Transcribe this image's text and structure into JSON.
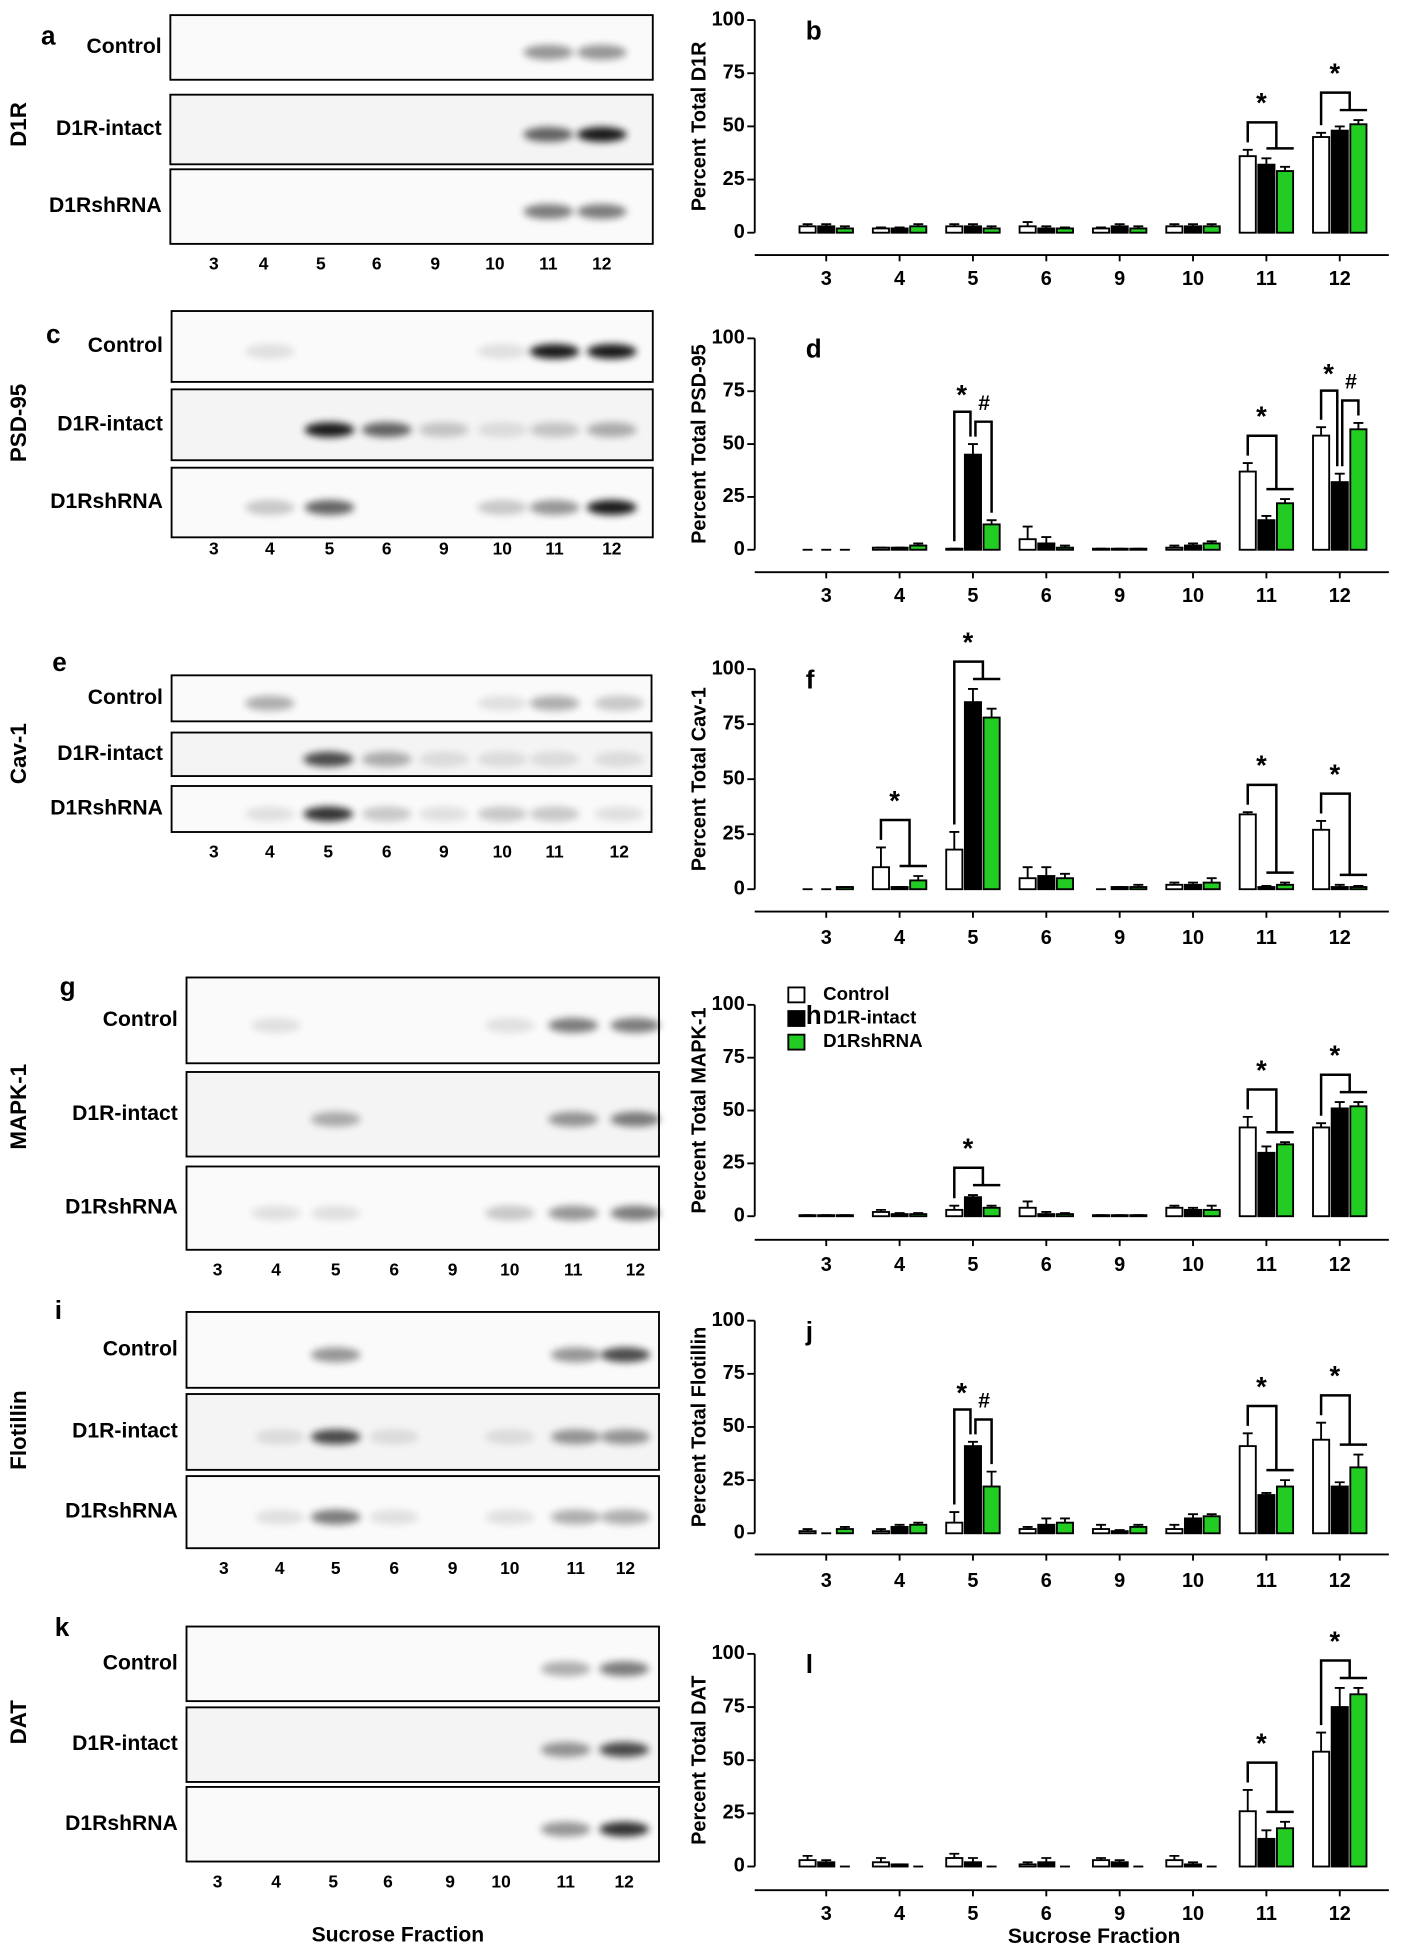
{
  "blots": {
    "xlabel": "Sucrose Fraction",
    "groups": [
      {
        "letter": "a",
        "protein": "D1R",
        "rows": [
          "Control",
          "D1R-intact",
          "D1RshRNA"
        ],
        "lanes": [
          "3",
          "4",
          "5",
          "6",
          "9",
          "10",
          "11",
          "12"
        ]
      },
      {
        "letter": "c",
        "protein": "PSD-95",
        "rows": [
          "Control",
          "D1R-intact",
          "D1RshRNA"
        ],
        "lanes": [
          "3",
          "4",
          "5",
          "6",
          "9",
          "10",
          "11",
          "12"
        ]
      },
      {
        "letter": "e",
        "protein": "Cav-1",
        "rows": [
          "Control",
          "D1R-intact",
          "D1RshRNA"
        ],
        "lanes": [
          "3",
          "4",
          "5",
          "6",
          "9",
          "10",
          "11",
          "12"
        ]
      },
      {
        "letter": "g",
        "protein": "MAPK-1",
        "rows": [
          "Control",
          "D1R-intact",
          "D1RshRNA"
        ],
        "lanes": [
          "3",
          "4",
          "5",
          "6",
          "9",
          "10",
          "11",
          "12"
        ]
      },
      {
        "letter": "i",
        "protein": "Flotillin",
        "rows": [
          "Control",
          "D1R-intact",
          "D1RshRNA"
        ],
        "lanes": [
          "3",
          "4",
          "5",
          "6",
          "9",
          "10",
          "11",
          "12"
        ]
      },
      {
        "letter": "k",
        "protein": "DAT",
        "rows": [
          "Control",
          "D1R-intact",
          "D1RshRNA"
        ],
        "lanes": [
          "3",
          "4",
          "5",
          "6",
          "9",
          "10",
          "11",
          "12"
        ]
      }
    ]
  },
  "chart_data": [
    {
      "type": "bar",
      "panel": "b",
      "ylabel": "Percent Total D1R",
      "categories": [
        "3",
        "4",
        "5",
        "6",
        "9",
        "10",
        "11",
        "12"
      ],
      "ylim": [
        0,
        100
      ],
      "yticks": [
        0,
        25,
        50,
        75,
        100
      ],
      "series": [
        {
          "name": "Control",
          "color": "#ffffff",
          "values": [
            3,
            2,
            3,
            3,
            2,
            3,
            36,
            45
          ],
          "errors": [
            1,
            0.5,
            1,
            2,
            0.5,
            1,
            3,
            2
          ]
        },
        {
          "name": "D1R-intact",
          "color": "#000000",
          "values": [
            3,
            2,
            3,
            2,
            3,
            3,
            32,
            48
          ],
          "errors": [
            1,
            0.5,
            1,
            1,
            1,
            1,
            3,
            2
          ]
        },
        {
          "name": "D1RshRNA",
          "color": "#22cc22",
          "values": [
            2,
            3,
            2,
            2,
            2,
            3,
            29,
            51
          ],
          "errors": [
            1,
            1,
            1,
            0.5,
            1,
            1,
            2,
            2
          ]
        }
      ],
      "annotations": [
        {
          "text": "*",
          "category": "11"
        },
        {
          "text": "*",
          "category": "12"
        }
      ]
    },
    {
      "type": "bar",
      "panel": "d",
      "ylabel": "Percent Total PSD-95",
      "categories": [
        "3",
        "4",
        "5",
        "6",
        "9",
        "10",
        "11",
        "12"
      ],
      "ylim": [
        0,
        100
      ],
      "yticks": [
        0,
        25,
        50,
        75,
        100
      ],
      "series": [
        {
          "name": "Control",
          "color": "#ffffff",
          "values": [
            0,
            1,
            0.5,
            5,
            0.5,
            1,
            37,
            54
          ],
          "errors": [
            0,
            0,
            0,
            6,
            0,
            1,
            4,
            4
          ]
        },
        {
          "name": "D1R-intact",
          "color": "#000000",
          "values": [
            0,
            1,
            45,
            3,
            0.5,
            2,
            14,
            32
          ],
          "errors": [
            0,
            0,
            5,
            3,
            0,
            1,
            2,
            4
          ]
        },
        {
          "name": "D1RshRNA",
          "color": "#22cc22",
          "values": [
            0,
            2,
            12,
            1,
            0.5,
            3,
            22,
            57
          ],
          "errors": [
            0,
            1,
            2,
            1,
            0,
            1,
            2,
            3
          ]
        }
      ],
      "annotations": [
        {
          "text": "*",
          "category": "5"
        },
        {
          "text": "#",
          "category": "5"
        },
        {
          "text": "*",
          "category": "11"
        },
        {
          "text": "*",
          "category": "12"
        },
        {
          "text": "#",
          "category": "12"
        }
      ]
    },
    {
      "type": "bar",
      "panel": "f",
      "ylabel": "Percent Total Cav-1",
      "categories": [
        "3",
        "4",
        "5",
        "6",
        "9",
        "10",
        "11",
        "12"
      ],
      "ylim": [
        0,
        100
      ],
      "yticks": [
        0,
        25,
        50,
        75,
        100
      ],
      "series": [
        {
          "name": "Control",
          "color": "#ffffff",
          "values": [
            0,
            10,
            18,
            5,
            0,
            2,
            34,
            27
          ],
          "errors": [
            0,
            9,
            8,
            5,
            0,
            1,
            1,
            4
          ]
        },
        {
          "name": "D1R-intact",
          "color": "#000000",
          "values": [
            0,
            1,
            85,
            6,
            1,
            2,
            1,
            1
          ],
          "errors": [
            0,
            0,
            6,
            4,
            0,
            1,
            0.5,
            1
          ]
        },
        {
          "name": "D1RshRNA",
          "color": "#22cc22",
          "values": [
            1,
            4,
            78,
            5,
            1,
            3,
            2,
            1
          ],
          "errors": [
            0,
            2,
            4,
            2,
            1,
            2,
            1,
            0.5
          ]
        }
      ],
      "annotations": [
        {
          "text": "*",
          "category": "4"
        },
        {
          "text": "*",
          "category": "5"
        },
        {
          "text": "*",
          "category": "11"
        },
        {
          "text": "*",
          "category": "12"
        }
      ]
    },
    {
      "type": "bar",
      "panel": "h",
      "ylabel": "Percent Total MAPK-1",
      "categories": [
        "3",
        "4",
        "5",
        "6",
        "9",
        "10",
        "11",
        "12"
      ],
      "ylim": [
        0,
        100
      ],
      "yticks": [
        0,
        25,
        50,
        75,
        100
      ],
      "legend": "upper left",
      "series": [
        {
          "name": "Control",
          "color": "#ffffff",
          "values": [
            0.5,
            2,
            3,
            4,
            0.5,
            4,
            42,
            42
          ],
          "errors": [
            0,
            1,
            2,
            3,
            0,
            1,
            5,
            2
          ]
        },
        {
          "name": "D1R-intact",
          "color": "#000000",
          "values": [
            0.5,
            1,
            9,
            1,
            0.5,
            3,
            30,
            51
          ],
          "errors": [
            0,
            0.5,
            1,
            1,
            0,
            1,
            3,
            3
          ]
        },
        {
          "name": "D1RshRNA",
          "color": "#22cc22",
          "values": [
            0.5,
            1,
            4,
            1,
            0.5,
            3,
            34,
            52
          ],
          "errors": [
            0,
            0.5,
            1,
            0.5,
            0,
            2,
            1,
            2
          ]
        }
      ],
      "annotations": [
        {
          "text": "*",
          "category": "5"
        },
        {
          "text": "*",
          "category": "11"
        },
        {
          "text": "*",
          "category": "12"
        }
      ]
    },
    {
      "type": "bar",
      "panel": "j",
      "ylabel": "Percent Total Flotillin",
      "categories": [
        "3",
        "4",
        "5",
        "6",
        "9",
        "10",
        "11",
        "12"
      ],
      "ylim": [
        0,
        100
      ],
      "yticks": [
        0,
        25,
        50,
        75,
        100
      ],
      "series": [
        {
          "name": "Control",
          "color": "#ffffff",
          "values": [
            1,
            1,
            5,
            2,
            2,
            2,
            41,
            44
          ],
          "errors": [
            1,
            1,
            5,
            1,
            2,
            2,
            6,
            8
          ]
        },
        {
          "name": "D1R-intact",
          "color": "#000000",
          "values": [
            0,
            3,
            41,
            4,
            1,
            7,
            18,
            22
          ],
          "errors": [
            0,
            1,
            2,
            3,
            0.5,
            2,
            1,
            2
          ]
        },
        {
          "name": "D1RshRNA",
          "color": "#22cc22",
          "values": [
            2,
            4,
            22,
            5,
            3,
            8,
            22,
            31
          ],
          "errors": [
            1,
            1,
            7,
            2,
            1,
            1,
            3,
            6
          ]
        }
      ],
      "annotations": [
        {
          "text": "*",
          "category": "5"
        },
        {
          "text": "#",
          "category": "5"
        },
        {
          "text": "*",
          "category": "11"
        },
        {
          "text": "*",
          "category": "12"
        }
      ]
    },
    {
      "type": "bar",
      "panel": "l",
      "ylabel": "Percent Total DAT",
      "xlabel": "Sucrose Fraction",
      "categories": [
        "3",
        "4",
        "5",
        "6",
        "9",
        "10",
        "11",
        "12"
      ],
      "ylim": [
        0,
        100
      ],
      "yticks": [
        0,
        25,
        50,
        75,
        100
      ],
      "series": [
        {
          "name": "Control",
          "color": "#ffffff",
          "values": [
            3,
            2,
            4,
            1,
            3,
            3,
            26,
            54
          ],
          "errors": [
            2,
            2,
            2,
            1,
            1,
            2,
            10,
            9
          ]
        },
        {
          "name": "D1R-intact",
          "color": "#000000",
          "values": [
            2,
            1,
            2,
            2,
            2,
            1,
            13,
            75
          ],
          "errors": [
            1,
            0,
            2,
            2,
            1,
            1,
            4,
            9
          ]
        },
        {
          "name": "D1RshRNA",
          "color": "#22cc22",
          "values": [
            0,
            0,
            0,
            0,
            0,
            0,
            18,
            81
          ],
          "errors": [
            0,
            0,
            0,
            0,
            0,
            0,
            3,
            3
          ]
        }
      ],
      "annotations": [
        {
          "text": "*",
          "category": "11"
        },
        {
          "text": "*",
          "category": "12"
        }
      ]
    }
  ]
}
